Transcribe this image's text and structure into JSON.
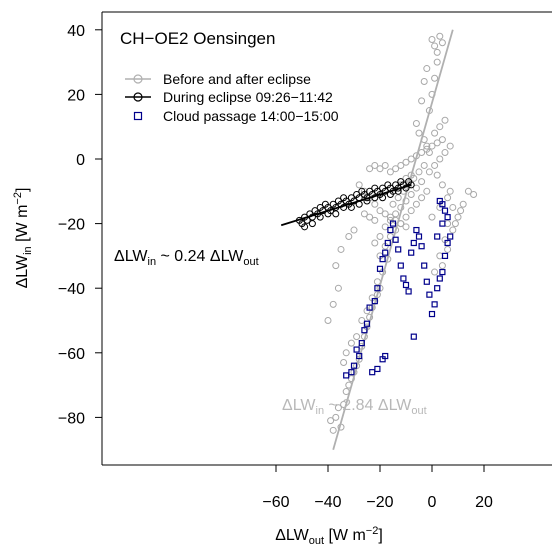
{
  "chart_data": {
    "type": "scatter",
    "title": "CH−OE2 Oensingen",
    "xlabel": {
      "base": "ΔLW",
      "sub": "out",
      "unit": " [W m",
      "sup": "−2",
      "close": "]"
    },
    "ylabel": {
      "base": "ΔLW",
      "sub": "in",
      "unit": " [W m",
      "sup": "−2",
      "close": "]"
    },
    "xlim": [
      -65,
      35
    ],
    "ylim": [
      -95,
      45
    ],
    "x_ticks": [
      -60,
      -40,
      -20,
      0,
      20
    ],
    "y_ticks": [
      -80,
      -60,
      -40,
      -20,
      0,
      20,
      40
    ],
    "x_tick_labels": [
      "−60",
      "−40",
      "−20",
      "0",
      "20"
    ],
    "y_tick_labels": [
      "−80",
      "−60",
      "−40",
      "−20",
      "0",
      "20",
      "40"
    ],
    "legend": [
      {
        "label": "Before and after eclipse",
        "color": "#b0b0b0",
        "marker": "circle",
        "line": true
      },
      {
        "label": "During eclipse 09:26−11:42",
        "color": "#000000",
        "marker": "circle",
        "line": true
      },
      {
        "label": "Cloud passage 14:00−15:00",
        "color": "#00008b",
        "marker": "square",
        "line": false
      }
    ],
    "annotations": [
      {
        "id": "black",
        "base": "ΔLW",
        "sub1": "in",
        "mid": " ~ 0.24 ΔLW",
        "sub2": "out",
        "color": "#000000"
      },
      {
        "id": "grey",
        "base": "ΔLW",
        "sub1": "in",
        "mid": " ~  2.84 ΔLW",
        "sub2": "out",
        "color": "#b8b8b8"
      }
    ],
    "fit_lines": [
      {
        "name": "During eclipse fit",
        "slope": 0.24,
        "x_range": [
          -58,
          -8
        ],
        "y_range": [
          -20.5,
          -8
        ],
        "color": "#000000"
      },
      {
        "name": "Before and after eclipse fit",
        "slope": 2.84,
        "x_range": [
          -38,
          8
        ],
        "y_range": [
          -90,
          40
        ],
        "color": "#b0b0b0"
      }
    ],
    "series": [
      {
        "name": "Before and after eclipse",
        "color": "#a8a8a8",
        "marker": "circle",
        "points": [
          [
            -39,
            -81
          ],
          [
            -38,
            -84
          ],
          [
            -37,
            -80
          ],
          [
            -36,
            -77
          ],
          [
            -35,
            -83
          ],
          [
            -34,
            -76
          ],
          [
            -33,
            -72
          ],
          [
            -32,
            -70
          ],
          [
            -31,
            -68
          ],
          [
            -30,
            -66
          ],
          [
            -29,
            -64
          ],
          [
            -28,
            -62
          ],
          [
            -27,
            -58
          ],
          [
            -26,
            -55
          ],
          [
            -25,
            -52
          ],
          [
            -24,
            -49
          ],
          [
            -23,
            -46
          ],
          [
            -22,
            -44
          ],
          [
            -21,
            -42
          ],
          [
            -20,
            -40
          ],
          [
            -34,
            -63
          ],
          [
            -33,
            -60
          ],
          [
            -31,
            -57
          ],
          [
            -29,
            -55
          ],
          [
            -27,
            -50
          ],
          [
            -25,
            -47
          ],
          [
            -23,
            -43
          ],
          [
            -21,
            -38
          ],
          [
            -19,
            -35
          ],
          [
            -17,
            -31
          ],
          [
            -20,
            -30
          ],
          [
            -18,
            -27
          ],
          [
            -16,
            -24
          ],
          [
            -14,
            -22
          ],
          [
            -12,
            -20
          ],
          [
            -10,
            -18
          ],
          [
            -8,
            -16
          ],
          [
            -6,
            -14
          ],
          [
            -4,
            -12
          ],
          [
            -2,
            -10
          ],
          [
            -22,
            -26
          ],
          [
            -20,
            -24
          ],
          [
            -18,
            -21
          ],
          [
            -16,
            -19
          ],
          [
            -14,
            -17
          ],
          [
            -12,
            -15
          ],
          [
            -10,
            -13
          ],
          [
            -8,
            -11
          ],
          [
            -6,
            -9
          ],
          [
            -4,
            -7
          ],
          [
            -24,
            -3
          ],
          [
            -22,
            -2
          ],
          [
            -20,
            -3
          ],
          [
            -18,
            -2
          ],
          [
            -16,
            -4
          ],
          [
            -14,
            -3
          ],
          [
            -12,
            -2
          ],
          [
            -10,
            -1
          ],
          [
            -8,
            0
          ],
          [
            -6,
            1
          ],
          [
            -4,
            2
          ],
          [
            -2,
            3
          ],
          [
            0,
            4
          ],
          [
            2,
            5
          ],
          [
            4,
            6
          ],
          [
            1,
            8
          ],
          [
            3,
            10
          ],
          [
            5,
            12
          ],
          [
            -1,
            15
          ],
          [
            0,
            20
          ],
          [
            1,
            25
          ],
          [
            2,
            30
          ],
          [
            1,
            35
          ],
          [
            0,
            37
          ],
          [
            3,
            38
          ],
          [
            4,
            36
          ],
          [
            2,
            33
          ],
          [
            -2,
            28
          ],
          [
            -3,
            24
          ],
          [
            -4,
            18
          ],
          [
            -6,
            11
          ],
          [
            -5,
            8
          ],
          [
            -3,
            6
          ],
          [
            -2,
            4
          ],
          [
            -1,
            2
          ],
          [
            -7,
            -6
          ],
          [
            -9,
            -8
          ],
          [
            -11,
            -10
          ],
          [
            -13,
            -12
          ],
          [
            -15,
            -14
          ],
          [
            -28,
            -8
          ],
          [
            -26,
            -10
          ],
          [
            -24,
            -12
          ],
          [
            -22,
            -14
          ],
          [
            -20,
            -16
          ],
          [
            -18,
            -17
          ],
          [
            -16,
            -18
          ],
          [
            -14,
            -19
          ],
          [
            -12,
            -20
          ],
          [
            -10,
            -21
          ],
          [
            -26,
            -17
          ],
          [
            -24,
            -18
          ],
          [
            -22,
            -19
          ],
          [
            -30,
            -22
          ],
          [
            -32,
            -24
          ],
          [
            -35,
            -28
          ],
          [
            -37,
            -33
          ],
          [
            -36,
            -40
          ],
          [
            -38,
            -45
          ],
          [
            -40,
            -50
          ],
          [
            2,
            -5
          ],
          [
            4,
            -8
          ],
          [
            6,
            -12
          ],
          [
            8,
            -15
          ],
          [
            10,
            -18
          ],
          [
            12,
            -14
          ],
          [
            14,
            -10
          ],
          [
            16,
            -11
          ],
          [
            6,
            -20
          ],
          [
            8,
            -22
          ],
          [
            5,
            -25
          ],
          [
            3,
            -30
          ],
          [
            1,
            -35
          ],
          [
            4,
            -33
          ],
          [
            6,
            -28
          ],
          [
            9,
            -20
          ],
          [
            11,
            -16
          ],
          [
            7,
            -10
          ],
          [
            3,
            -15
          ],
          [
            0,
            -18
          ],
          [
            -5,
            -4
          ],
          [
            -3,
            -2
          ],
          [
            -1,
            -4
          ],
          [
            1,
            -2
          ],
          [
            3,
            0
          ],
          [
            5,
            2
          ],
          [
            7,
            4
          ],
          [
            -8,
            -5
          ],
          [
            -10,
            -6
          ],
          [
            -12,
            -8
          ]
        ]
      },
      {
        "name": "During eclipse",
        "color": "#000000",
        "marker": "circle",
        "points": [
          [
            -51,
            -19
          ],
          [
            -50,
            -20
          ],
          [
            -49,
            -18
          ],
          [
            -48,
            -19
          ],
          [
            -47,
            -17
          ],
          [
            -46,
            -18
          ],
          [
            -45,
            -16
          ],
          [
            -44,
            -17
          ],
          [
            -43,
            -15
          ],
          [
            -42,
            -16
          ],
          [
            -41,
            -14
          ],
          [
            -40,
            -15
          ],
          [
            -39,
            -16
          ],
          [
            -38,
            -14
          ],
          [
            -37,
            -15
          ],
          [
            -36,
            -13
          ],
          [
            -35,
            -14
          ],
          [
            -34,
            -12
          ],
          [
            -33,
            -13
          ],
          [
            -32,
            -14
          ],
          [
            -31,
            -12
          ],
          [
            -30,
            -13
          ],
          [
            -29,
            -11
          ],
          [
            -28,
            -12
          ],
          [
            -27,
            -10
          ],
          [
            -26,
            -11
          ],
          [
            -25,
            -12
          ],
          [
            -24,
            -10
          ],
          [
            -23,
            -11
          ],
          [
            -22,
            -9
          ],
          [
            -21,
            -10
          ],
          [
            -20,
            -11
          ],
          [
            -19,
            -9
          ],
          [
            -18,
            -10
          ],
          [
            -17,
            -8
          ],
          [
            -16,
            -9
          ],
          [
            -15,
            -10
          ],
          [
            -14,
            -8
          ],
          [
            -13,
            -9
          ],
          [
            -12,
            -7
          ],
          [
            -11,
            -8
          ],
          [
            -10,
            -9
          ],
          [
            -9,
            -7
          ],
          [
            -8,
            -8
          ],
          [
            -49,
            -21
          ],
          [
            -46,
            -20
          ],
          [
            -43,
            -18
          ],
          [
            -40,
            -17
          ],
          [
            -37,
            -17
          ],
          [
            -34,
            -15
          ],
          [
            -31,
            -15
          ],
          [
            -28,
            -14
          ],
          [
            -25,
            -13
          ],
          [
            -22,
            -12
          ],
          [
            -19,
            -12
          ],
          [
            -16,
            -11
          ],
          [
            -13,
            -10
          ]
        ]
      },
      {
        "name": "Cloud passage",
        "color": "#00008b",
        "marker": "square",
        "points": [
          [
            -33,
            -67
          ],
          [
            -31,
            -66
          ],
          [
            -30,
            -64
          ],
          [
            -29,
            -59
          ],
          [
            -28,
            -61
          ],
          [
            -27,
            -57
          ],
          [
            -26,
            -53
          ],
          [
            -25,
            -51
          ],
          [
            -24,
            -46
          ],
          [
            -22,
            -44
          ],
          [
            -21,
            -40
          ],
          [
            -20,
            -34
          ],
          [
            -19,
            -31
          ],
          [
            -18,
            -29
          ],
          [
            -17,
            -26
          ],
          [
            -16,
            -22
          ],
          [
            -15,
            -20
          ],
          [
            -14,
            -25
          ],
          [
            -13,
            -28
          ],
          [
            -12,
            -33
          ],
          [
            -11,
            -37
          ],
          [
            -10,
            -39
          ],
          [
            -9,
            -41
          ],
          [
            -8,
            -29
          ],
          [
            -7,
            -26
          ],
          [
            -6,
            -22
          ],
          [
            -5,
            -24
          ],
          [
            -4,
            -27
          ],
          [
            -3,
            -33
          ],
          [
            -2,
            -38
          ],
          [
            -1,
            -42
          ],
          [
            0,
            -48
          ],
          [
            1,
            -45
          ],
          [
            2,
            -40
          ],
          [
            3,
            -37
          ],
          [
            4,
            -35
          ],
          [
            5,
            -30
          ],
          [
            6,
            -26
          ],
          [
            7,
            -24
          ],
          [
            3,
            -13
          ],
          [
            4,
            -14
          ],
          [
            5,
            -16
          ],
          [
            6,
            -18
          ],
          [
            4,
            -20
          ],
          [
            2,
            -24
          ],
          [
            -19,
            -62
          ],
          [
            -18,
            -61
          ],
          [
            -23,
            -66
          ],
          [
            -21,
            -65
          ],
          [
            -7,
            -55
          ]
        ]
      }
    ]
  }
}
